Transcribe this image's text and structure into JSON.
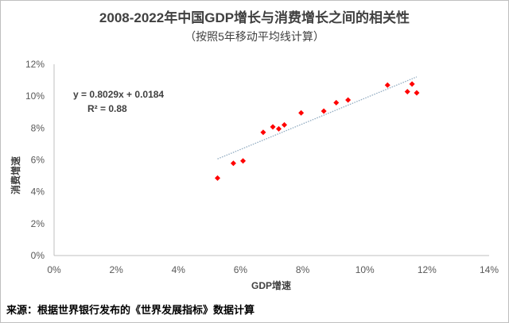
{
  "chart_data": {
    "type": "scatter",
    "title": "2008-2022年中国GDP增长与消费增长之间的相关性",
    "subtitle": "（按照5年移动平均线计算）",
    "xlabel": "GDP增速",
    "ylabel": "消费增速",
    "xlim": [
      0,
      14
    ],
    "ylim": [
      0,
      12
    ],
    "x_ticks": [
      "0%",
      "2%",
      "4%",
      "6%",
      "8%",
      "10%",
      "12%",
      "14%"
    ],
    "y_ticks": [
      "0%",
      "2%",
      "4%",
      "6%",
      "8%",
      "10%",
      "12%"
    ],
    "grid": false,
    "marker_color": "#ff0000",
    "trendline_color": "#8faac0",
    "points": [
      {
        "x": 5.26,
        "y": 4.86
      },
      {
        "x": 5.77,
        "y": 5.79
      },
      {
        "x": 6.08,
        "y": 5.94
      },
      {
        "x": 6.73,
        "y": 7.73
      },
      {
        "x": 7.04,
        "y": 8.07
      },
      {
        "x": 7.23,
        "y": 7.95
      },
      {
        "x": 7.41,
        "y": 8.2
      },
      {
        "x": 7.95,
        "y": 8.95
      },
      {
        "x": 8.68,
        "y": 9.06
      },
      {
        "x": 9.08,
        "y": 9.59
      },
      {
        "x": 9.46,
        "y": 9.76
      },
      {
        "x": 10.73,
        "y": 10.69
      },
      {
        "x": 11.37,
        "y": 10.28
      },
      {
        "x": 11.52,
        "y": 10.76
      },
      {
        "x": 11.67,
        "y": 10.21
      }
    ],
    "trendline": {
      "slope": 0.8029,
      "intercept": 0.0184,
      "equation": "y = 0.8029x + 0.0184",
      "r2": "R² = 0.88"
    }
  },
  "source": "来源：根据世界银行发布的《世界发展指标》数据计算"
}
